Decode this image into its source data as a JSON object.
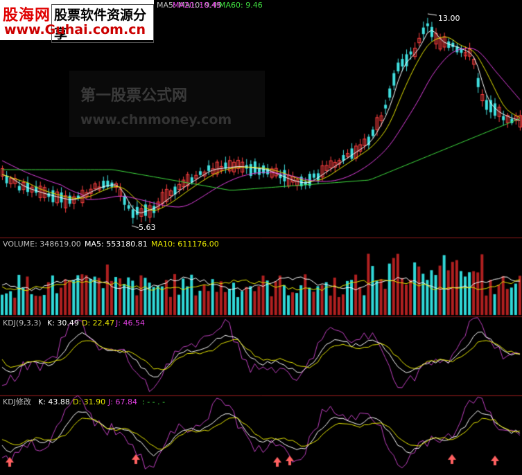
{
  "logo": {
    "site_name": "股海网",
    "tagline": "股票软件资源分享",
    "url": "www.Guhai.com.cn"
  },
  "watermark": {
    "line1": "第一股票公式网",
    "line2": "www.chnmoney.com"
  },
  "price_panel": {
    "legend_visible_text": "MA5:      MA10: 9.45",
    "ma20": "MA20: 10.49",
    "ma60": "MA60: 9.46",
    "high_label": "13.00",
    "low_label": "5.63",
    "colors": {
      "ma5": "#ffffff",
      "ma10": "#e8e800",
      "ma20": "#e040e0",
      "ma60": "#40e040",
      "up": "#ff4040",
      "down": "#40e0e0"
    }
  },
  "volume_panel": {
    "label": "VOLUME: 348619.00",
    "ma5": "MA5: 553180.81",
    "ma10": "MA10: 611176.00"
  },
  "kdj_panel": {
    "name": "KDJ(9,3,3)",
    "k": "K: 30.49",
    "d": "D: 22.47",
    "j": "J: 46.54"
  },
  "kdj_mod_panel": {
    "name": "KDJ修改",
    "k": "K: 43.88",
    "d": "D: 31.90",
    "j": "J: 67.84",
    "extra": ": -   - . -"
  },
  "arrow_color": "#ff6060"
}
